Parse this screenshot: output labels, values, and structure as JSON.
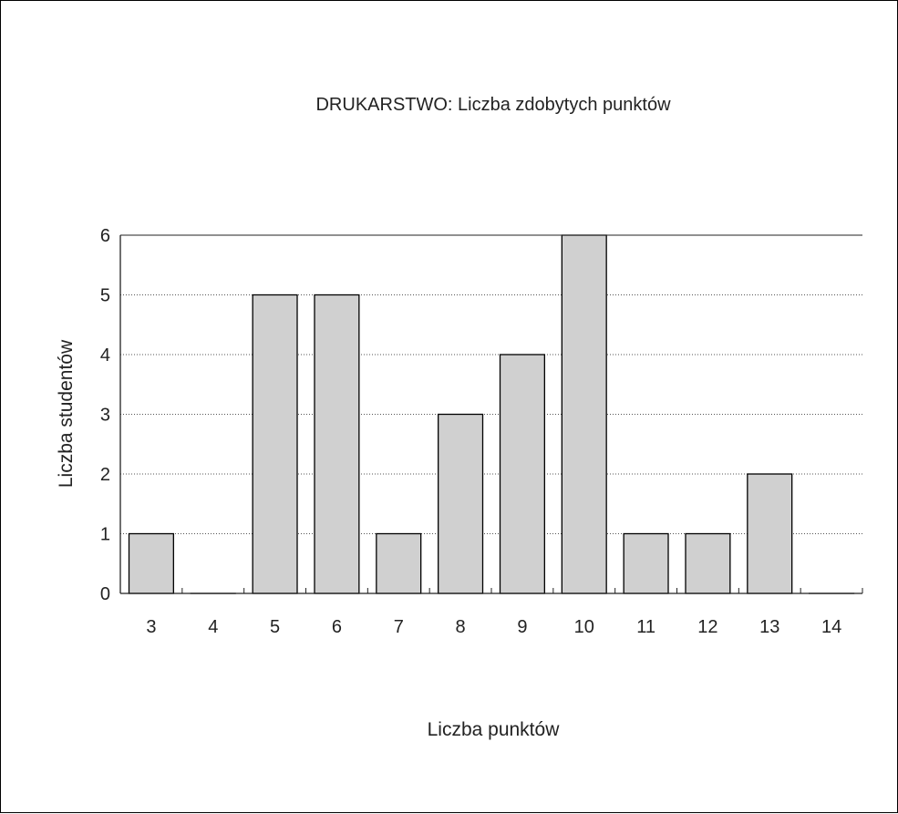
{
  "chart_data": {
    "type": "bar",
    "title": "DRUKARSTWO: Liczba zdobytych punktów",
    "xlabel": "Liczba punktów",
    "ylabel": "Liczba studentów",
    "categories": [
      "3",
      "4",
      "5",
      "6",
      "7",
      "8",
      "9",
      "10",
      "11",
      "12",
      "13",
      "14"
    ],
    "values": [
      1,
      0,
      5,
      5,
      1,
      3,
      4,
      6,
      1,
      1,
      2,
      0
    ],
    "ylim": [
      0,
      6
    ],
    "yticks": [
      0,
      1,
      2,
      3,
      4,
      5,
      6
    ],
    "grid": true,
    "bar_color": "#d0d0d0",
    "bar_edge_color": "#000000"
  }
}
